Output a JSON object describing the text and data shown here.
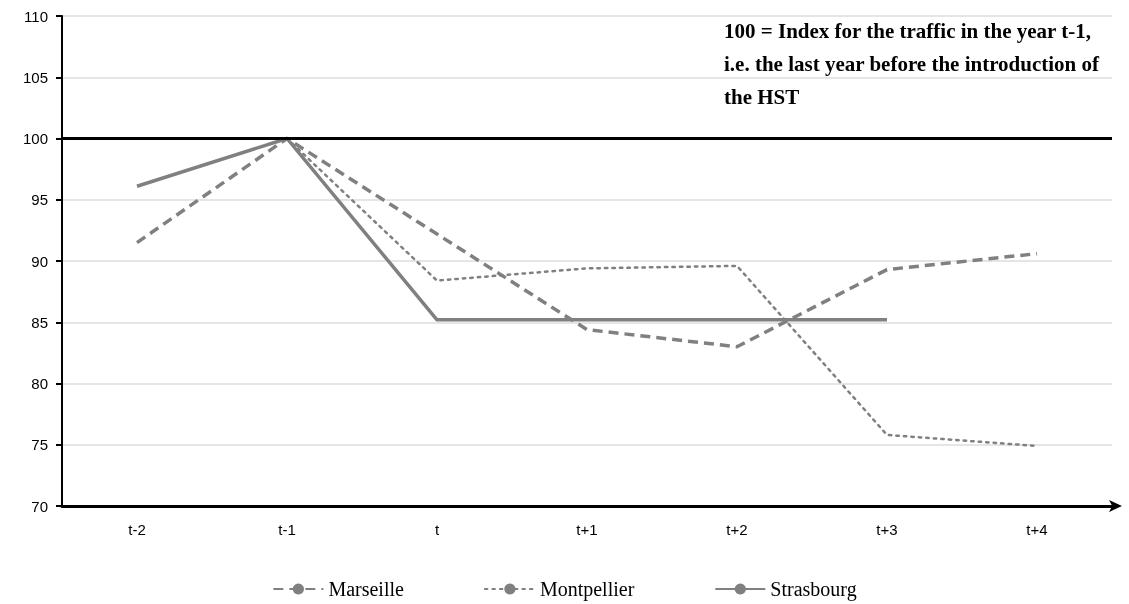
{
  "chart_data": {
    "type": "line",
    "categories": [
      "t-2",
      "t-1",
      "t",
      "t+1",
      "t+2",
      "t+3",
      "t+4"
    ],
    "series": [
      {
        "name": "Marseille",
        "color": "#808080",
        "line_style": "dashed",
        "values": [
          91.5,
          100,
          92.2,
          84.4,
          83.0,
          89.3,
          90.6
        ]
      },
      {
        "name": "Montpellier",
        "color": "#808080",
        "line_style": "dotted",
        "values": [
          null,
          100,
          88.4,
          89.4,
          89.6,
          75.8,
          74.9
        ]
      },
      {
        "name": "Strasbourg",
        "color": "#808080",
        "line_style": "solid",
        "values": [
          96.1,
          100,
          85.2,
          85.2,
          85.2,
          85.2,
          null
        ]
      }
    ],
    "ylim": [
      70,
      110
    ],
    "yticks": [
      70,
      75,
      80,
      85,
      90,
      95,
      100,
      105,
      110
    ],
    "grid": "y",
    "legend": "bottom",
    "marker": "none",
    "ref_lines": [
      {
        "axis": "y",
        "value": 100,
        "color": "#000000"
      }
    ],
    "annotations": [
      "100 = Index for the traffic in the year t-1, i.e. the last year before the introduction of the HST"
    ]
  }
}
